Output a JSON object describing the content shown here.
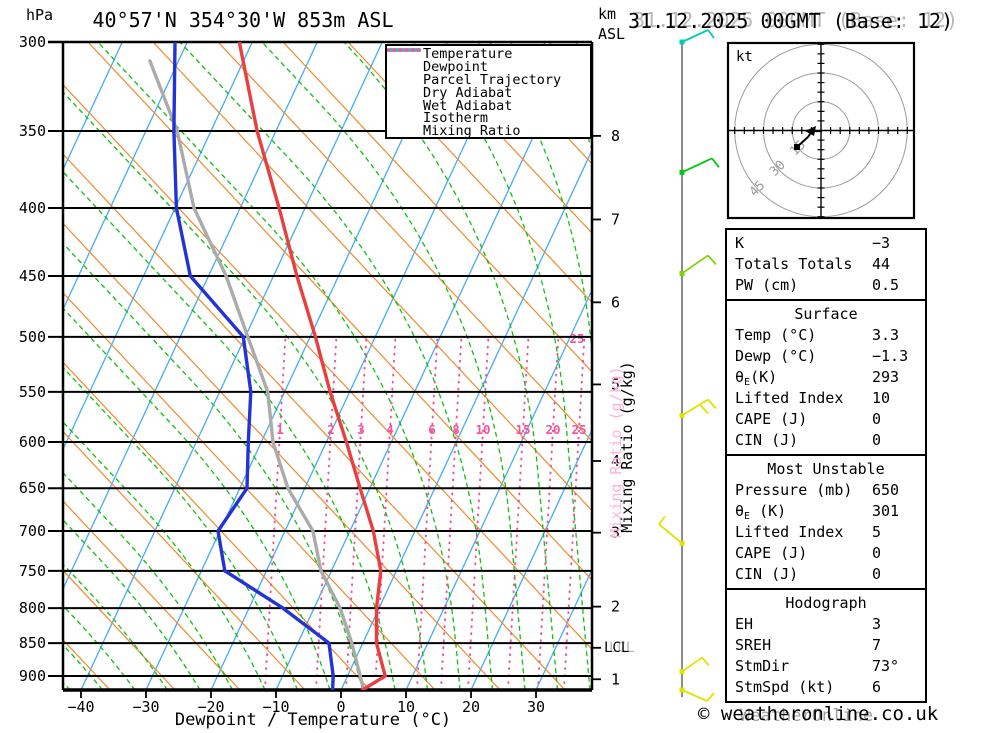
{
  "header": {
    "pressure_unit": "hPa",
    "station_title": "40°57'N 354°30'W 853m ASL",
    "km_axis_label": "km\nASL",
    "datetime_title": "31.12.2025 00GMT (Base: 12)"
  },
  "watermark": {
    "copyright": "© weatheronline.co.uk",
    "ghost": "WeatherOnline"
  },
  "legend": [
    {
      "label": "Temperature",
      "color": "#e84040",
      "width": 3.5,
      "dash": ""
    },
    {
      "label": "Dewpoint",
      "color": "#2433d6",
      "width": 3.5,
      "dash": ""
    },
    {
      "label": "Parcel Trajectory",
      "color": "#ababab",
      "width": 3.5,
      "dash": ""
    },
    {
      "label": "Dry Adiabat",
      "color": "#ee8b2e",
      "width": 1.5,
      "dash": ""
    },
    {
      "label": "Wet Adiabat",
      "color": "#10c010",
      "width": 1.5,
      "dash": "5 3"
    },
    {
      "label": "Isotherm",
      "color": "#46abf2",
      "width": 1.5,
      "dash": ""
    },
    {
      "label": "Mixing Ratio",
      "color": "#f0559e",
      "width": 2.5,
      "dash": "1 5"
    }
  ],
  "chart_data": {
    "type": "line",
    "subtype": "skew-t-log-p",
    "title": "40°57'N 354°30'W 853m ASL",
    "valid": "31.12.2025 00GMT (Base: 12)",
    "xlabel": "Dewpoint / Temperature (°C)",
    "pressure_axis": {
      "unit": "hPa",
      "ticks": [
        300,
        350,
        400,
        450,
        500,
        550,
        600,
        650,
        700,
        750,
        800,
        850,
        900
      ],
      "range": [
        300,
        922
      ]
    },
    "temp_axis": {
      "ticks": [
        -40,
        -30,
        -20,
        -10,
        0,
        10,
        20,
        30
      ]
    },
    "altitude_axis": {
      "unit": "km ASL",
      "ticks": [
        {
          "km": 1,
          "hpa": 905
        },
        {
          "km": 2,
          "hpa": 798
        },
        {
          "km": 3,
          "hpa": 702
        },
        {
          "km": 4,
          "hpa": 620
        },
        {
          "km": 5,
          "hpa": 543
        },
        {
          "km": 6,
          "hpa": 471
        },
        {
          "km": 7,
          "hpa": 408
        },
        {
          "km": 8,
          "hpa": 353
        }
      ]
    },
    "lcl": {
      "label": "LCL",
      "hpa": 857
    },
    "isotherm_step_c": 10,
    "mixing_ratio_lines_gkg": [
      1,
      2,
      3,
      4,
      6,
      8,
      10,
      15,
      20,
      25
    ],
    "mixing_ratio_axis_label": "Mixing Ratio (g/kg)",
    "series": [
      {
        "name": "Temperature",
        "color": "#e84040",
        "width": 3.4,
        "points_hpa_c": [
          [
            922,
            3.3
          ],
          [
            900,
            5.8
          ],
          [
            850,
            2.1
          ],
          [
            800,
            -0.4
          ],
          [
            750,
            -2.4
          ],
          [
            700,
            -6.4
          ],
          [
            650,
            -11.5
          ],
          [
            600,
            -16.9
          ],
          [
            550,
            -23.0
          ],
          [
            500,
            -29.2
          ],
          [
            450,
            -36.4
          ],
          [
            400,
            -44.0
          ],
          [
            350,
            -52.9
          ],
          [
            300,
            -62.0
          ]
        ]
      },
      {
        "name": "Dewpoint",
        "color": "#2433d6",
        "width": 3.4,
        "points_hpa_c": [
          [
            922,
            -1.3
          ],
          [
            900,
            -2.2
          ],
          [
            850,
            -5.2
          ],
          [
            800,
            -14.8
          ],
          [
            750,
            -26.4
          ],
          [
            700,
            -30.3
          ],
          [
            650,
            -28.9
          ],
          [
            600,
            -32.0
          ],
          [
            550,
            -35.2
          ],
          [
            500,
            -40.3
          ],
          [
            450,
            -52.8
          ],
          [
            400,
            -59.8
          ],
          [
            350,
            -65.7
          ],
          [
            300,
            -71.9
          ]
        ]
      },
      {
        "name": "Parcel Trajectory",
        "color": "#ababab",
        "width": 3.4,
        "points_hpa_c": [
          [
            922,
            3.5
          ],
          [
            850,
            -1.7
          ],
          [
            800,
            -6.0
          ],
          [
            750,
            -11.6
          ],
          [
            700,
            -15.7
          ],
          [
            650,
            -22.6
          ],
          [
            600,
            -28.2
          ],
          [
            550,
            -32.6
          ],
          [
            500,
            -39.6
          ],
          [
            450,
            -47.3
          ],
          [
            400,
            -57.1
          ],
          [
            350,
            -65.2
          ],
          [
            310,
            -74.4
          ]
        ]
      }
    ],
    "wind_barbs": [
      {
        "hpa": 300,
        "color": "#00cdb4",
        "shaft": [
          26,
          -12
        ],
        "feathers": [
          [
            26,
            -12,
            6,
            8
          ]
        ]
      },
      {
        "hpa": 376,
        "color": "#00c814",
        "shaft": [
          30,
          -14
        ],
        "feathers": [
          [
            30,
            -14,
            7,
            9
          ]
        ]
      },
      {
        "hpa": 448,
        "color": "#7cd400",
        "shaft": [
          26,
          -18
        ],
        "feathers": [
          [
            26,
            -18,
            8,
            9
          ]
        ]
      },
      {
        "hpa": 573,
        "color": "#e2e200",
        "shaft": [
          26,
          -16
        ],
        "feathers": [
          [
            26,
            -16,
            8,
            9
          ],
          [
            18,
            -11,
            8,
            9
          ]
        ]
      },
      {
        "hpa": 715,
        "color": "#e2e200",
        "shaft": [
          -23,
          -19
        ],
        "feathers": [
          [
            -23,
            -19,
            6,
            -8
          ]
        ]
      },
      {
        "hpa": 893,
        "color": "#e2e200",
        "shaft": [
          20,
          -14
        ],
        "feathers": [
          [
            20,
            -14,
            7,
            8
          ]
        ]
      },
      {
        "hpa": 922,
        "color": "#e2e200",
        "shaft": [
          25,
          11
        ],
        "feathers": [
          [
            25,
            11,
            7,
            -8
          ]
        ]
      }
    ],
    "hodograph": {
      "unit_label": "kt",
      "rings_kt": [
        15,
        30,
        45
      ],
      "tick_step_kt": 5,
      "trace_kt": [
        [
          -12.5,
          8.6
        ],
        [
          -6.8,
          3.4
        ],
        [
          -4.7,
          0.3
        ],
        [
          0.5,
          0.3
        ]
      ]
    }
  },
  "panels": {
    "stats": {
      "rows": [
        [
          "K",
          "−3"
        ],
        [
          "Totals Totals",
          "44"
        ],
        [
          "PW (cm)",
          "0.5"
        ]
      ]
    },
    "surface": {
      "title": "Surface",
      "rows": [
        [
          "Temp (°C)",
          "3.3"
        ],
        [
          "Dewp (°C)",
          "−1.3"
        ],
        [
          "θE(K)",
          "293"
        ],
        [
          "Lifted Index",
          "10"
        ],
        [
          "CAPE (J)",
          "0"
        ],
        [
          "CIN (J)",
          "0"
        ]
      ]
    },
    "most_unstable": {
      "title": "Most Unstable",
      "rows": [
        [
          "Pressure (mb)",
          "650"
        ],
        [
          "θE (K)",
          "301"
        ],
        [
          "Lifted Index",
          "5"
        ],
        [
          "CAPE (J)",
          "0"
        ],
        [
          "CIN (J)",
          "0"
        ]
      ]
    },
    "hodograph": {
      "title": "Hodograph",
      "rows": [
        [
          "EH",
          "3"
        ],
        [
          "SREH",
          "7"
        ],
        [
          "StmDir",
          "73°"
        ],
        [
          "StmSpd (kt)",
          "6"
        ]
      ]
    }
  }
}
